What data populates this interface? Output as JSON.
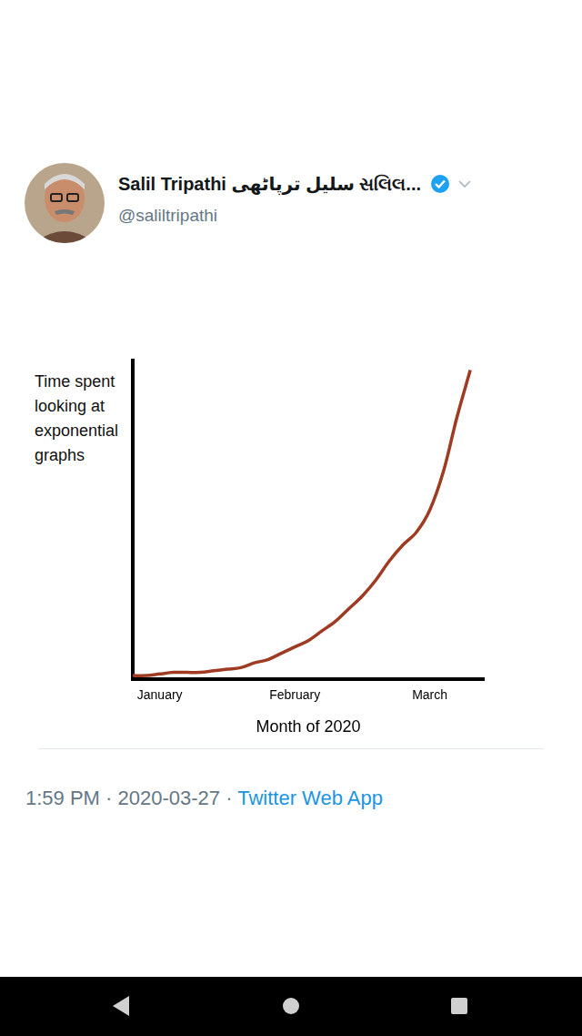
{
  "tweet": {
    "name": "Salil Tripathi سلیل ترپاٹھی સલિલ...",
    "handle": "@saliltripathi",
    "timestamp": "1:59 PM · 2020-03-27 · ",
    "source": "Twitter Web App"
  },
  "chart_data": {
    "type": "line",
    "y_label": "Time spent looking at exponential graphs",
    "x_label": "Month of 2020",
    "categories": [
      null,
      null,
      "January",
      null,
      null,
      null,
      null,
      null,
      null,
      null,
      null,
      null,
      "February",
      null,
      null,
      null,
      null,
      null,
      null,
      null,
      null,
      null,
      "March",
      null,
      null,
      null,
      null
    ],
    "values": [
      1,
      1,
      1.5,
      2,
      2,
      2,
      2.5,
      3,
      3.5,
      5,
      6,
      8,
      10,
      12,
      15,
      18,
      22,
      26,
      31,
      37,
      42,
      46,
      53,
      65,
      82,
      97,
      null
    ],
    "color": "#9e3b22",
    "ylim": [
      0,
      100
    ],
    "tick_labels": "x",
    "grid": false,
    "marker": "none",
    "line_style": "solid"
  }
}
